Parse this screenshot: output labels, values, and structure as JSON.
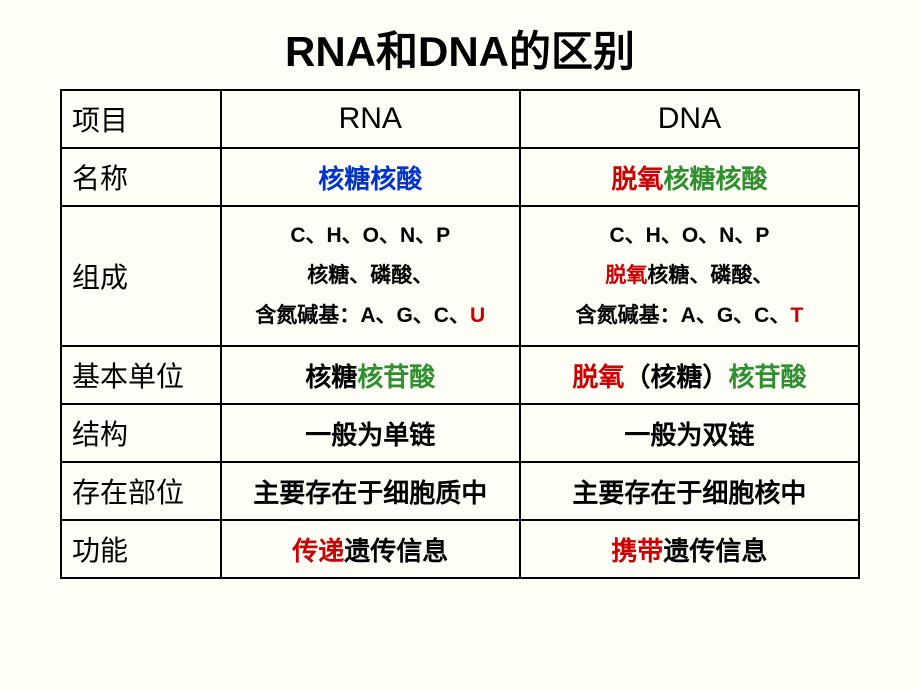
{
  "title": "RNA和DNA的区别",
  "bg_color": "#fefef6",
  "border_color": "#000000",
  "text_color": "#000000",
  "blue": "#0033cc",
  "red": "#cc0000",
  "green": "#2f8f2f",
  "header": {
    "c1": "项目",
    "c2": "RNA",
    "c3": "DNA"
  },
  "rows": {
    "name": {
      "label": "名称",
      "rna": "核糖核酸",
      "dna_prefix": "脱氧",
      "dna_rest": "核糖核酸"
    },
    "comp": {
      "label": "组成",
      "elements": "C、H、O、N、P",
      "rna_sugar": "核糖、磷酸、",
      "dna_prefix": "脱氧",
      "dna_sugar_rest": "核糖、磷酸、",
      "bases_label": "含氮碱基：",
      "rna_bases_common": "A、G、C、",
      "rna_base_unique": "U",
      "dna_bases_common": "A、G、C、",
      "dna_base_unique": "T"
    },
    "unit": {
      "label": "基本单位",
      "rna_a": "核糖",
      "rna_b": "核苷酸",
      "dna_a": "脱氧",
      "dna_b": "（核糖）",
      "dna_c": "核苷酸"
    },
    "struct": {
      "label": "结构",
      "rna": "一般为单链",
      "dna": "一般为双链"
    },
    "loc": {
      "label": "存在部位",
      "rna": "主要存在于细胞质中",
      "dna": "主要存在于细胞核中"
    },
    "func": {
      "label": "功能",
      "rna_a": "传递",
      "rna_b": "遗传信息",
      "dna_a": "携带",
      "dna_b": "遗传信息"
    }
  }
}
